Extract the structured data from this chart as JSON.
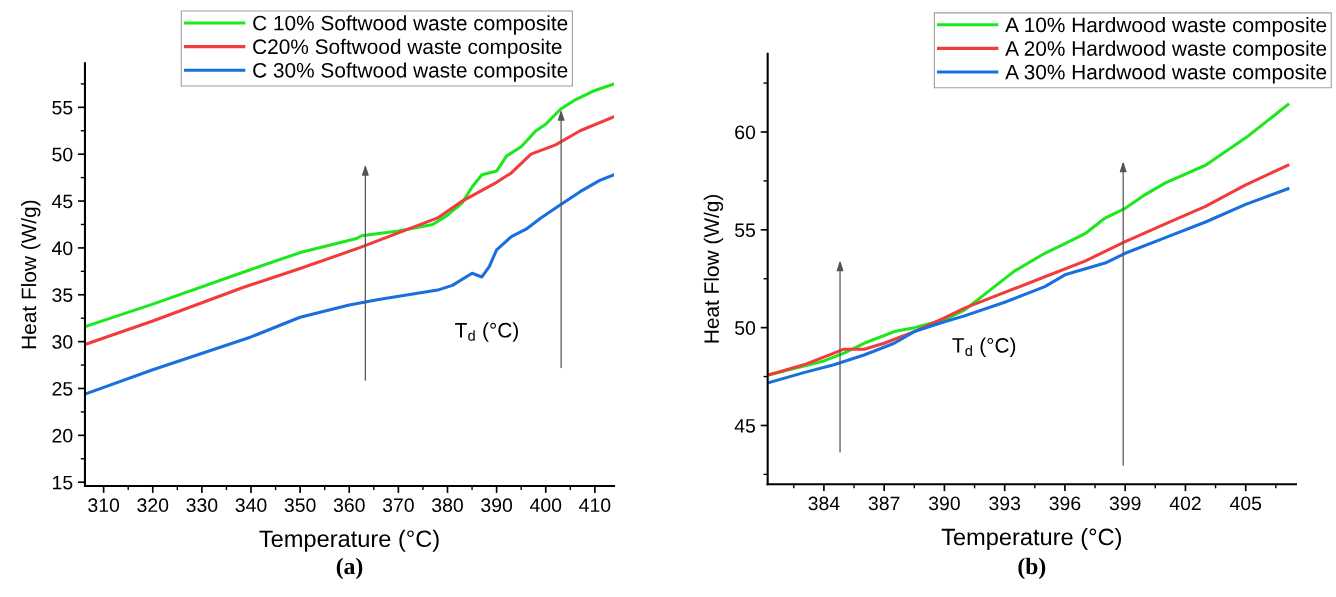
{
  "chart_data": [
    {
      "type": "line",
      "xlabel": "Temperature (°C)",
      "ylabel": "Heat Flow (W/g)",
      "xlim": [
        306.2,
        413.9
      ],
      "ylim": [
        14.6,
        59.7
      ],
      "xticks": [
        310,
        320,
        330,
        340,
        350,
        360,
        370,
        380,
        390,
        400,
        410
      ],
      "yticks": [
        15,
        20,
        25,
        30,
        35,
        40,
        45,
        50,
        55
      ],
      "grid": false,
      "legend": "top right",
      "marker": "none",
      "line_style": "solid",
      "annotations": [
        "T$_{d}$ (°C)",
        "(a)"
      ],
      "series": [
        {
          "name": "C 10% Softwood waste composite",
          "color": "#1de81d",
          "x": [
            306.2,
            320,
            340,
            350,
            361.5,
            362.5,
            370,
            377,
            380,
            383,
            385,
            387,
            390,
            392,
            395,
            398,
            400,
            403,
            406,
            410,
            413.9
          ],
          "values": [
            31.6,
            34.0,
            37.7,
            39.5,
            41.0,
            41.3,
            41.8,
            42.5,
            43.5,
            44.8,
            46.5,
            47.8,
            48.2,
            49.8,
            50.8,
            52.5,
            53.2,
            54.8,
            55.8,
            56.8,
            57.5
          ]
        },
        {
          "name": "C20% Softwood waste composite",
          "color": "#f23c3c",
          "x": [
            306.2,
            320,
            338.5,
            350,
            362,
            372,
            378,
            383,
            390,
            393,
            397,
            402,
            407,
            413.9
          ],
          "values": [
            29.7,
            32.2,
            35.8,
            37.8,
            40.0,
            42.0,
            43.2,
            45.0,
            47.0,
            48.0,
            50.0,
            51.0,
            52.5,
            54.0
          ]
        },
        {
          "name": "C 30% Softwood waste composite",
          "color": "#1a6fdf",
          "x": [
            306.2,
            320,
            340,
            350,
            360,
            366,
            372,
            378,
            381,
            385,
            387,
            388.5,
            390,
            393,
            396,
            399,
            403,
            407,
            411,
            413.9
          ],
          "values": [
            24.4,
            27.0,
            30.5,
            32.6,
            33.9,
            34.5,
            35.0,
            35.5,
            36.0,
            37.3,
            36.9,
            38.0,
            39.8,
            41.2,
            42.0,
            43.2,
            44.6,
            46.0,
            47.2,
            47.8
          ]
        }
      ]
    },
    {
      "type": "line",
      "xlabel": "Temperature (°C)",
      "ylabel": "Heat Flow (W/g)",
      "xlim": [
        381.2,
        407.5
      ],
      "ylim": [
        42,
        64
      ],
      "xticks": [
        384,
        387,
        390,
        393,
        396,
        399,
        402,
        405
      ],
      "yticks": [
        45,
        50,
        55,
        60
      ],
      "grid": false,
      "legend": "top right",
      "marker": "none",
      "line_style": "solid",
      "annotations": [
        "T$_{d}$ (°C)",
        "(b)"
      ],
      "series": [
        {
          "name": "A 10% Hardwood waste composite",
          "color": "#1de81d",
          "x": [
            381.3,
            384,
            385,
            386,
            387.5,
            388.5,
            390,
            391,
            392,
            393.5,
            395,
            396,
            397,
            398,
            399,
            400,
            401,
            403,
            405,
            407.1
          ],
          "values": [
            47.6,
            48.3,
            48.7,
            49.2,
            49.8,
            50.0,
            50.4,
            50.9,
            51.7,
            52.9,
            53.8,
            54.3,
            54.8,
            55.6,
            56.1,
            56.8,
            57.4,
            58.3,
            59.7,
            61.4
          ]
        },
        {
          "name": "A 20% Hardwood waste composite",
          "color": "#f23c3c",
          "x": [
            381.3,
            383,
            384.5,
            385,
            386,
            387,
            388.5,
            390,
            391,
            393,
            395,
            397,
            399,
            401,
            403,
            405,
            407.1
          ],
          "values": [
            47.6,
            48.1,
            48.7,
            48.9,
            48.9,
            49.2,
            49.8,
            50.5,
            51.0,
            51.8,
            52.6,
            53.4,
            54.4,
            55.3,
            56.2,
            57.3,
            58.3
          ]
        },
        {
          "name": "A 30% Hardwood waste composite",
          "color": "#1a6fdf",
          "x": [
            381.3,
            383,
            384.5,
            386,
            387.5,
            388.5,
            390,
            391,
            393,
            395,
            396,
            398,
            399,
            401,
            403,
            405,
            407.1
          ],
          "values": [
            47.2,
            47.7,
            48.1,
            48.6,
            49.2,
            49.8,
            50.3,
            50.6,
            51.3,
            52.1,
            52.7,
            53.3,
            53.8,
            54.6,
            55.4,
            56.3,
            57.1
          ]
        }
      ]
    }
  ]
}
